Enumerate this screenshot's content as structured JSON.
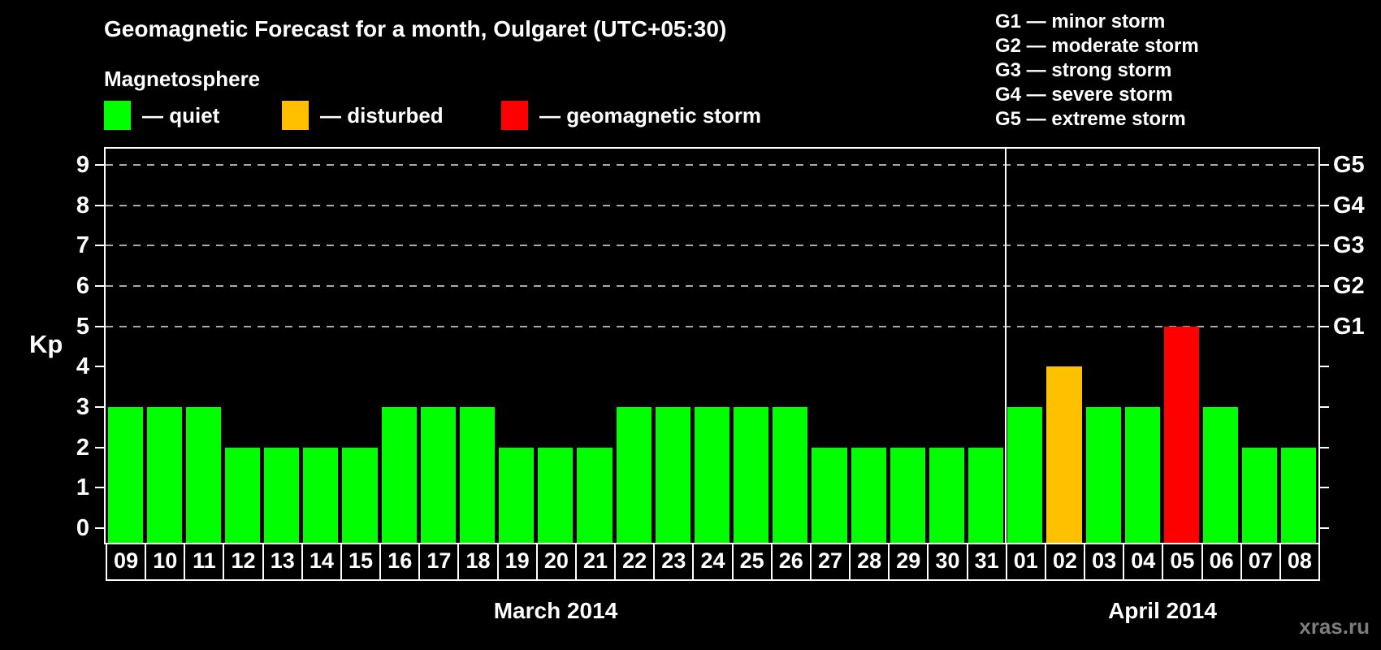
{
  "watermark": "xras.ru",
  "legend": {
    "title": "Magnetosphere",
    "items": [
      {
        "label": "— quiet",
        "state": "quiet",
        "color": "#00ff00"
      },
      {
        "label": "— disturbed",
        "state": "disturbed",
        "color": "#ffc000"
      },
      {
        "label": "— geomagnetic storm",
        "state": "storm",
        "color": "#ff0000"
      }
    ]
  },
  "g_legend": [
    "G1 — minor storm",
    "G2 — moderate storm",
    "G3 — strong storm",
    "G4 — severe storm",
    "G5 — extreme storm"
  ],
  "chart_data": {
    "type": "bar",
    "title": "Geomagnetic Forecast for a month, Oulgaret (UTC+05:30)",
    "ylabel": "Kp",
    "ylim": [
      -0.36,
      9.4
    ],
    "yticks": [
      0,
      1,
      2,
      3,
      4,
      5,
      6,
      7,
      8,
      9
    ],
    "grid_levels": [
      5,
      6,
      7,
      8,
      9
    ],
    "grid_style": "dashed",
    "legend_position": "top",
    "right_axis": [
      {
        "label": "G1",
        "kp": 5
      },
      {
        "label": "G2",
        "kp": 6
      },
      {
        "label": "G3",
        "kp": 7
      },
      {
        "label": "G4",
        "kp": 8
      },
      {
        "label": "G5",
        "kp": 9
      }
    ],
    "colors": {
      "quiet": "#00ff00",
      "disturbed": "#ffc000",
      "storm": "#ff0000"
    },
    "months": [
      {
        "label": "March 2014",
        "days": [
          {
            "day": "09",
            "kp": 3,
            "state": "quiet"
          },
          {
            "day": "10",
            "kp": 3,
            "state": "quiet"
          },
          {
            "day": "11",
            "kp": 3,
            "state": "quiet"
          },
          {
            "day": "12",
            "kp": 2,
            "state": "quiet"
          },
          {
            "day": "13",
            "kp": 2,
            "state": "quiet"
          },
          {
            "day": "14",
            "kp": 2,
            "state": "quiet"
          },
          {
            "day": "15",
            "kp": 2,
            "state": "quiet"
          },
          {
            "day": "16",
            "kp": 3,
            "state": "quiet"
          },
          {
            "day": "17",
            "kp": 3,
            "state": "quiet"
          },
          {
            "day": "18",
            "kp": 3,
            "state": "quiet"
          },
          {
            "day": "19",
            "kp": 2,
            "state": "quiet"
          },
          {
            "day": "20",
            "kp": 2,
            "state": "quiet"
          },
          {
            "day": "21",
            "kp": 2,
            "state": "quiet"
          },
          {
            "day": "22",
            "kp": 3,
            "state": "quiet"
          },
          {
            "day": "23",
            "kp": 3,
            "state": "quiet"
          },
          {
            "day": "24",
            "kp": 3,
            "state": "quiet"
          },
          {
            "day": "25",
            "kp": 3,
            "state": "quiet"
          },
          {
            "day": "26",
            "kp": 3,
            "state": "quiet"
          },
          {
            "day": "27",
            "kp": 2,
            "state": "quiet"
          },
          {
            "day": "28",
            "kp": 2,
            "state": "quiet"
          },
          {
            "day": "29",
            "kp": 2,
            "state": "quiet"
          },
          {
            "day": "30",
            "kp": 2,
            "state": "quiet"
          },
          {
            "day": "31",
            "kp": 2,
            "state": "quiet"
          }
        ]
      },
      {
        "label": "April 2014",
        "days": [
          {
            "day": "01",
            "kp": 3,
            "state": "quiet"
          },
          {
            "day": "02",
            "kp": 4,
            "state": "disturbed"
          },
          {
            "day": "03",
            "kp": 3,
            "state": "quiet"
          },
          {
            "day": "04",
            "kp": 3,
            "state": "quiet"
          },
          {
            "day": "05",
            "kp": 5,
            "state": "storm"
          },
          {
            "day": "06",
            "kp": 3,
            "state": "quiet"
          },
          {
            "day": "07",
            "kp": 2,
            "state": "quiet"
          },
          {
            "day": "08",
            "kp": 2,
            "state": "quiet"
          }
        ]
      }
    ]
  }
}
